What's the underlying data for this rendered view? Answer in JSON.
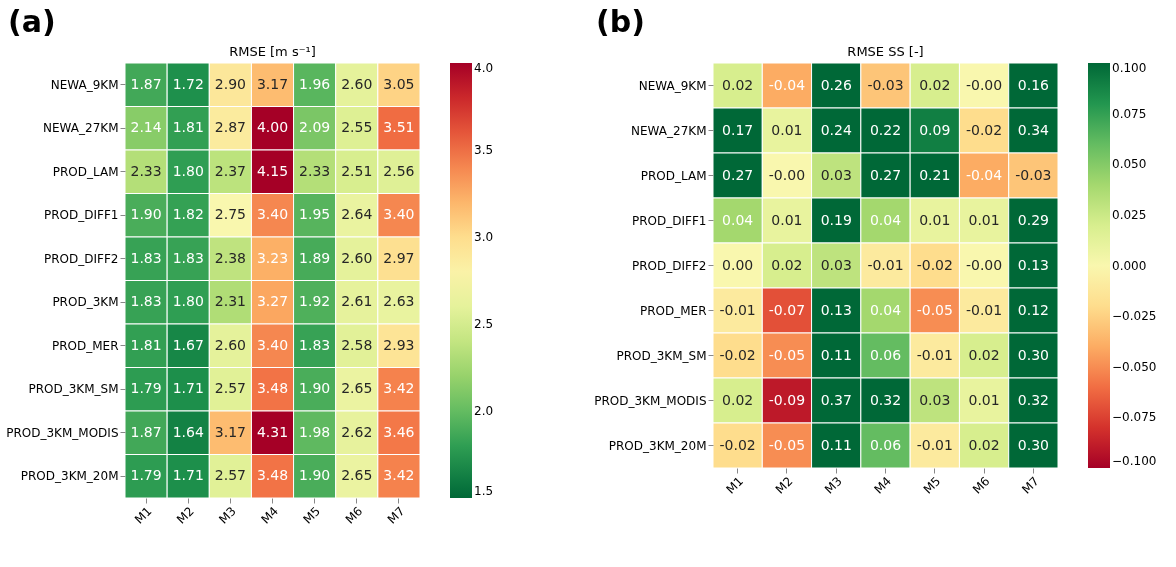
{
  "chart_data": [
    {
      "type": "heatmap",
      "title": "RMSE [m s⁻¹]",
      "annotations": [
        "(a)"
      ],
      "categories": [
        "M1",
        "M2",
        "M3",
        "M4",
        "M5",
        "M6",
        "M7"
      ],
      "y_categories": [
        "NEWA_9KM",
        "NEWA_27KM",
        "PROD_LAM",
        "PROD_DIFF1",
        "PROD_DIFF2",
        "PROD_3KM",
        "PROD_MER",
        "PROD_3KM_SM",
        "PROD_3KM_MODIS",
        "PROD_3KM_20M"
      ],
      "cells": [
        [
          1.87,
          1.72,
          2.9,
          3.17,
          1.96,
          2.6,
          3.05
        ],
        [
          2.14,
          1.81,
          2.87,
          4.0,
          2.09,
          2.55,
          3.51
        ],
        [
          2.33,
          1.8,
          2.37,
          4.15,
          2.33,
          2.51,
          2.56
        ],
        [
          1.9,
          1.82,
          2.75,
          3.4,
          1.95,
          2.64,
          3.4
        ],
        [
          1.83,
          1.83,
          2.38,
          3.23,
          1.89,
          2.6,
          2.97
        ],
        [
          1.83,
          1.8,
          2.31,
          3.27,
          1.92,
          2.61,
          2.63
        ],
        [
          1.81,
          1.67,
          2.6,
          3.4,
          1.83,
          2.58,
          2.93
        ],
        [
          1.79,
          1.71,
          2.57,
          3.48,
          1.9,
          2.65,
          3.42
        ],
        [
          1.87,
          1.64,
          3.17,
          4.31,
          1.98,
          2.62,
          3.46
        ],
        [
          1.79,
          1.71,
          2.57,
          3.48,
          1.9,
          2.65,
          3.42
        ]
      ],
      "cell_labels": [
        [
          "1.87",
          "1.72",
          "2.90",
          "3.17",
          "1.96",
          "2.60",
          "3.05"
        ],
        [
          "2.14",
          "1.81",
          "2.87",
          "4.00",
          "2.09",
          "2.55",
          "3.51"
        ],
        [
          "2.33",
          "1.80",
          "2.37",
          "4.15",
          "2.33",
          "2.51",
          "2.56"
        ],
        [
          "1.90",
          "1.82",
          "2.75",
          "3.40",
          "1.95",
          "2.64",
          "3.40"
        ],
        [
          "1.83",
          "1.83",
          "2.38",
          "3.23",
          "1.89",
          "2.60",
          "2.97"
        ],
        [
          "1.83",
          "1.80",
          "2.31",
          "3.27",
          "1.92",
          "2.61",
          "2.63"
        ],
        [
          "1.81",
          "1.67",
          "2.60",
          "3.40",
          "1.83",
          "2.58",
          "2.93"
        ],
        [
          "1.79",
          "1.71",
          "2.57",
          "3.48",
          "1.90",
          "2.65",
          "3.42"
        ],
        [
          "1.87",
          "1.64",
          "3.17",
          "4.31",
          "1.98",
          "2.62",
          "3.46"
        ],
        [
          "1.79",
          "1.71",
          "2.57",
          "3.48",
          "1.90",
          "2.65",
          "3.42"
        ]
      ],
      "clim": [
        1.5,
        4.0
      ],
      "cticks": [
        1.5,
        {
          "value": 2,
          "label": "2.0"
        },
        2.5,
        {
          "value": 3,
          "label": "3.0"
        },
        3.5,
        {
          "value": 4,
          "label": "4.0"
        }
      ]
    },
    {
      "type": "heatmap",
      "title": "RMSE SS [-]",
      "annotations": [
        "(b)"
      ],
      "categories": [
        "M1",
        "M2",
        "M3",
        "M4",
        "M5",
        "M6",
        "M7"
      ],
      "y_categories": [
        "NEWA_9KM",
        "NEWA_27KM",
        "PROD_LAM",
        "PROD_DIFF1",
        "PROD_DIFF2",
        "PROD_MER",
        "PROD_3KM_SM",
        "PROD_3KM_MODIS",
        "PROD_3KM_20M"
      ],
      "cells": [
        [
          0.02,
          -0.04,
          0.26,
          -0.03,
          0.02,
          0,
          0.16
        ],
        [
          0.17,
          0.01,
          0.24,
          0.22,
          0.09,
          -0.02,
          0.34
        ],
        [
          0.27,
          0,
          0.03,
          0.27,
          0.21,
          -0.04,
          -0.03
        ],
        [
          0.04,
          0.01,
          0.19,
          0.04,
          0.01,
          0.01,
          0.29
        ],
        [
          0,
          0.02,
          0.03,
          -0.01,
          -0.02,
          0,
          0.13
        ],
        [
          -0.01,
          -0.07,
          0.13,
          0.04,
          -0.05,
          -0.01,
          0.12
        ],
        [
          -0.02,
          -0.05,
          0.11,
          0.06,
          -0.01,
          0.02,
          0.3
        ],
        [
          0.02,
          -0.09,
          0.37,
          0.32,
          0.03,
          0.01,
          0.32
        ],
        [
          -0.02,
          -0.05,
          0.11,
          0.06,
          -0.01,
          0.02,
          0.3
        ]
      ],
      "cell_labels": [
        [
          "0.02",
          "-0.04",
          "0.26",
          "-0.03",
          "0.02",
          "-0.00",
          "0.16"
        ],
        [
          "0.17",
          "0.01",
          "0.24",
          "0.22",
          "0.09",
          "-0.02",
          "0.34"
        ],
        [
          "0.27",
          "-0.00",
          "0.03",
          "0.27",
          "0.21",
          "-0.04",
          "-0.03"
        ],
        [
          "0.04",
          "0.01",
          "0.19",
          "0.04",
          "0.01",
          "0.01",
          "0.29"
        ],
        [
          "0.00",
          "0.02",
          "0.03",
          "-0.01",
          "-0.02",
          "-0.00",
          "0.13"
        ],
        [
          "-0.01",
          "-0.07",
          "0.13",
          "0.04",
          "-0.05",
          "-0.01",
          "0.12"
        ],
        [
          "-0.02",
          "-0.05",
          "0.11",
          "0.06",
          "-0.01",
          "0.02",
          "0.30"
        ],
        [
          "0.02",
          "-0.09",
          "0.37",
          "0.32",
          "0.03",
          "0.01",
          "0.32"
        ],
        [
          "-0.02",
          "-0.05",
          "0.11",
          "0.06",
          "-0.01",
          "0.02",
          "0.30"
        ]
      ],
      "clim": [
        -0.1,
        0.1
      ],
      "cticks": [
        {
          "value": 0.1,
          "label": "0.100"
        },
        {
          "value": 0.075,
          "label": "0.075"
        },
        {
          "value": 0.05,
          "label": "0.050"
        },
        {
          "value": 0.025,
          "label": "0.025"
        },
        {
          "value": 0,
          "label": "0.000"
        },
        {
          "value": -0.025,
          "label": "−0.025"
        },
        {
          "value": -0.05,
          "label": "−0.050"
        },
        {
          "value": -0.075,
          "label": "−0.075"
        },
        {
          "value": -0.1,
          "label": "−0.100"
        }
      ]
    }
  ]
}
